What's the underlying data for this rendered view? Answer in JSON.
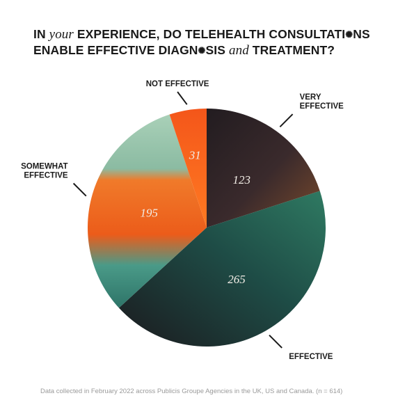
{
  "title": {
    "w1": "IN",
    "w2": "your",
    "w3": "EXPERIENCE, DO TELEHEALTH CONSULTATI",
    "bloom": "✺",
    "w4": "NS",
    "w5": "ENABLE EFFECTIVE DIAGN",
    "w6": "SIS",
    "w7": "and",
    "w8": "TREATMENT?"
  },
  "footnote": "Data collected in February 2022 across Publicis Groupe Agencies in the UK, US and Canada. (n = 614)",
  "chart_data": {
    "type": "pie",
    "total": 614,
    "slices": [
      {
        "label": [
          "VERY",
          "EFFECTIVE"
        ],
        "value": 123,
        "color": "#2b2226"
      },
      {
        "label": [
          "EFFECTIVE"
        ],
        "value": 265,
        "color": "#1f4a44"
      },
      {
        "label": [
          "SOMEWHAT",
          "EFFECTIVE"
        ],
        "value": 195,
        "color": "#ec6a22"
      },
      {
        "label": [
          "NOT EFFECTIVE"
        ],
        "value": 31,
        "color": "#f4561a"
      }
    ]
  }
}
